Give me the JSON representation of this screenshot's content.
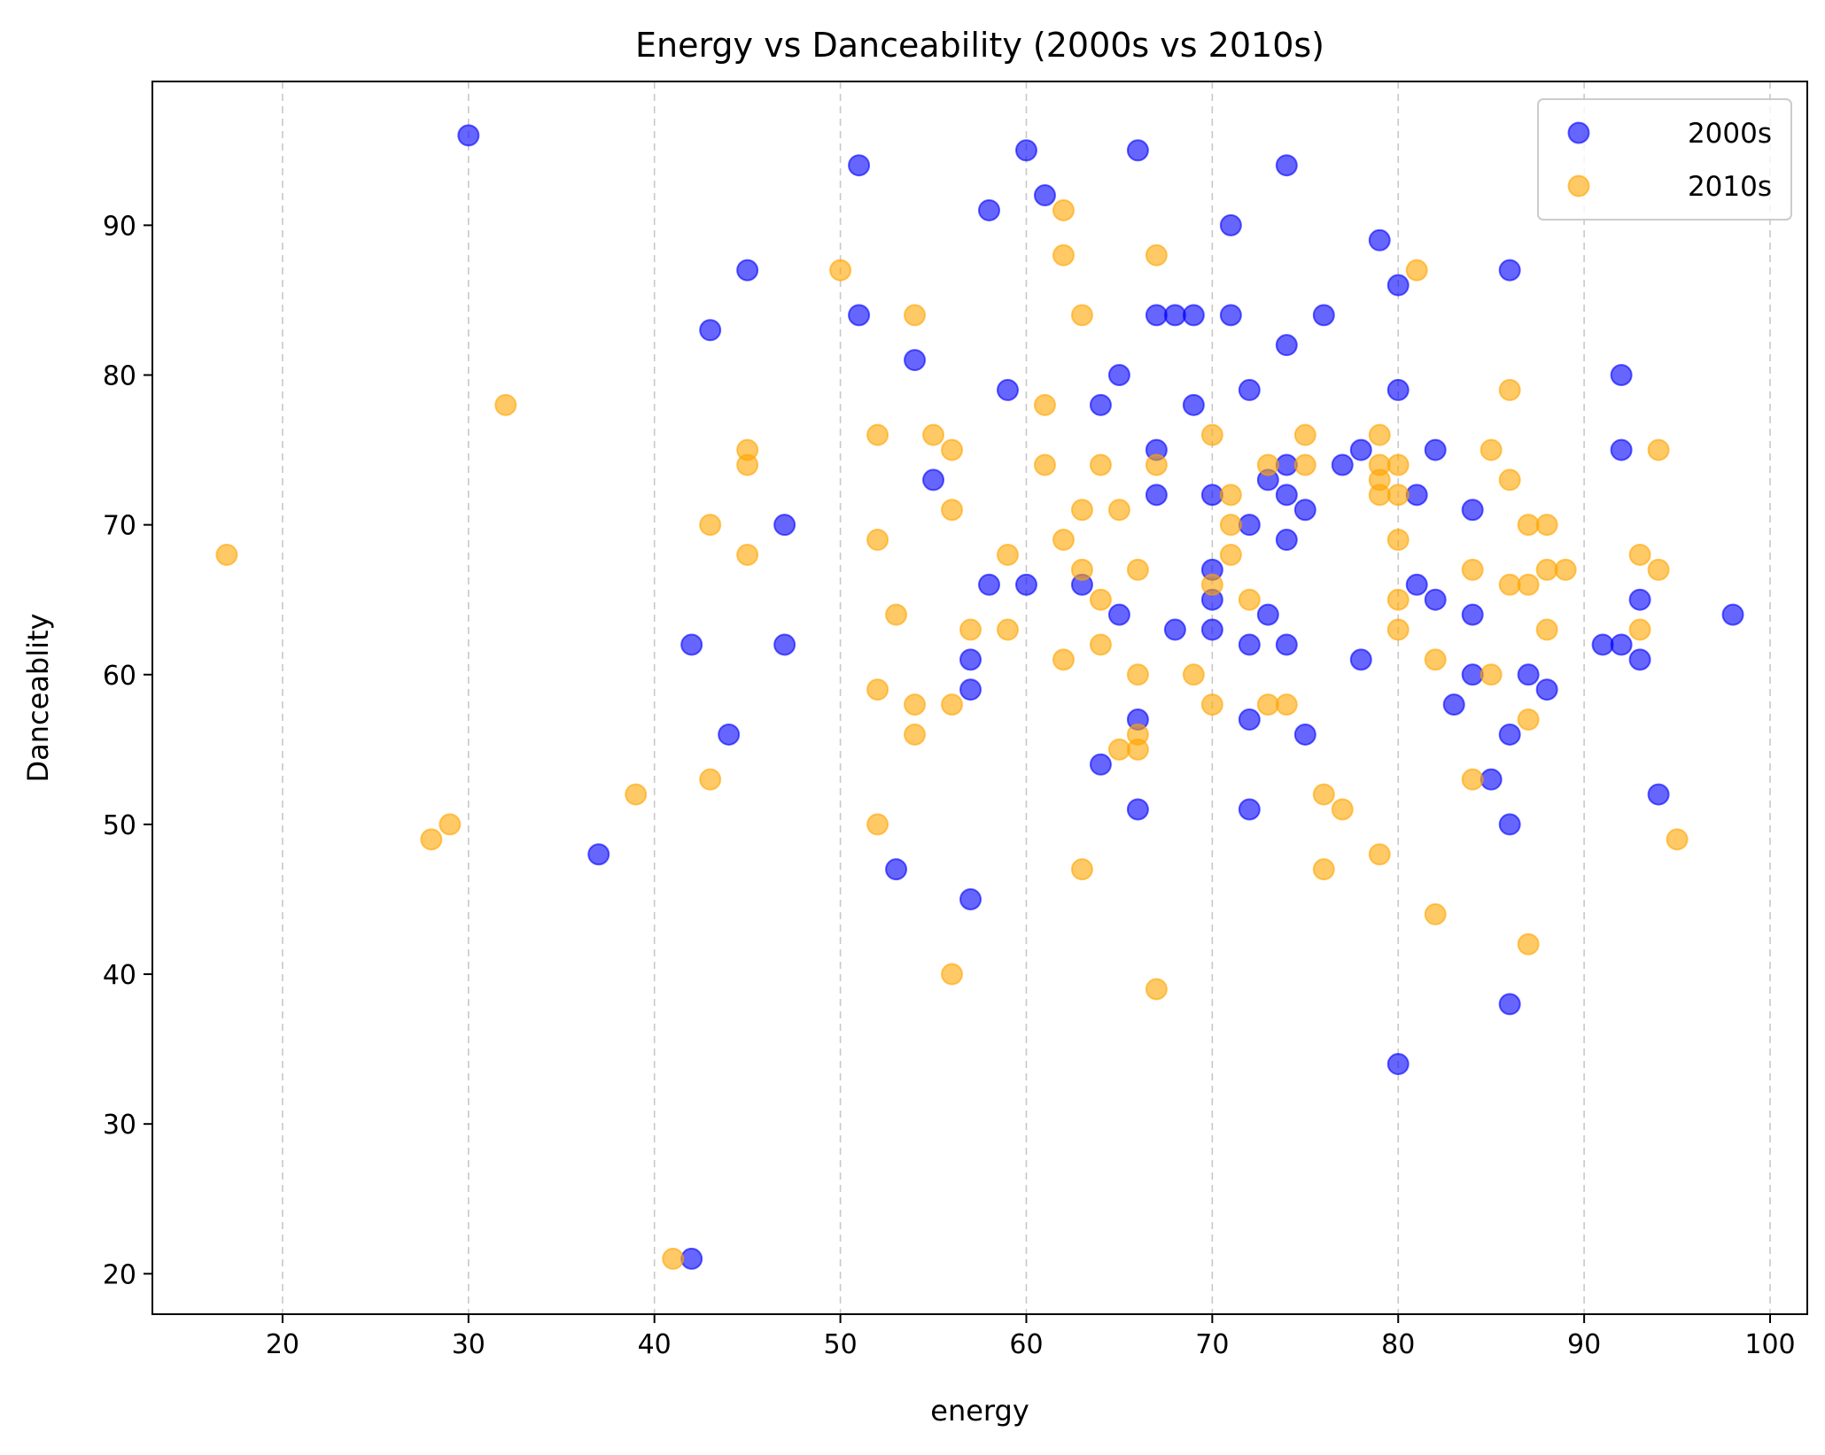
{
  "chart_data": {
    "type": "scatter",
    "title": "Energy vs Danceability (2000s vs 2010s)",
    "xlabel": "energy",
    "ylabel": "Danceablity",
    "xlim": [
      13,
      102
    ],
    "ylim": [
      17.3,
      99.6
    ],
    "xticks": [
      20,
      30,
      40,
      50,
      60,
      70,
      80,
      90,
      100
    ],
    "yticks": [
      20,
      30,
      40,
      50,
      60,
      70,
      80,
      90
    ],
    "grid": "vertical dashed",
    "legend_position": "top-right",
    "series": [
      {
        "name": "2000s",
        "color": "#0000ff",
        "points": [
          [
            30,
            96
          ],
          [
            51,
            94
          ],
          [
            60,
            95
          ],
          [
            66,
            95
          ],
          [
            74,
            94
          ],
          [
            61,
            92
          ],
          [
            58,
            91
          ],
          [
            71,
            90
          ],
          [
            79,
            89
          ],
          [
            45,
            87
          ],
          [
            86,
            87
          ],
          [
            80,
            86
          ],
          [
            51,
            84
          ],
          [
            67,
            84
          ],
          [
            68,
            84
          ],
          [
            69,
            84
          ],
          [
            71,
            84
          ],
          [
            76,
            84
          ],
          [
            43,
            83
          ],
          [
            74,
            82
          ],
          [
            54,
            81
          ],
          [
            65,
            80
          ],
          [
            92,
            80
          ],
          [
            59,
            79
          ],
          [
            72,
            79
          ],
          [
            80,
            79
          ],
          [
            64,
            78
          ],
          [
            69,
            78
          ],
          [
            67,
            75
          ],
          [
            78,
            75
          ],
          [
            82,
            75
          ],
          [
            92,
            75
          ],
          [
            77,
            74
          ],
          [
            74,
            74
          ],
          [
            55,
            73
          ],
          [
            73,
            73
          ],
          [
            67,
            72
          ],
          [
            70,
            72
          ],
          [
            74,
            72
          ],
          [
            81,
            72
          ],
          [
            75,
            71
          ],
          [
            84,
            71
          ],
          [
            47,
            70
          ],
          [
            72,
            70
          ],
          [
            74,
            69
          ],
          [
            70,
            67
          ],
          [
            58,
            66
          ],
          [
            60,
            66
          ],
          [
            63,
            66
          ],
          [
            81,
            66
          ],
          [
            65,
            64
          ],
          [
            73,
            64
          ],
          [
            84,
            64
          ],
          [
            98,
            64
          ],
          [
            70,
            65
          ],
          [
            82,
            65
          ],
          [
            93,
            65
          ],
          [
            68,
            63
          ],
          [
            70,
            63
          ],
          [
            42,
            62
          ],
          [
            47,
            62
          ],
          [
            72,
            62
          ],
          [
            74,
            62
          ],
          [
            91,
            62
          ],
          [
            92,
            62
          ],
          [
            57,
            61
          ],
          [
            78,
            61
          ],
          [
            93,
            61
          ],
          [
            84,
            60
          ],
          [
            87,
            60
          ],
          [
            57,
            59
          ],
          [
            88,
            59
          ],
          [
            83,
            58
          ],
          [
            66,
            57
          ],
          [
            72,
            57
          ],
          [
            44,
            56
          ],
          [
            75,
            56
          ],
          [
            86,
            56
          ],
          [
            64,
            54
          ],
          [
            85,
            53
          ],
          [
            94,
            52
          ],
          [
            66,
            51
          ],
          [
            72,
            51
          ],
          [
            86,
            50
          ],
          [
            37,
            48
          ],
          [
            53,
            47
          ],
          [
            57,
            45
          ],
          [
            86,
            38
          ],
          [
            80,
            34
          ],
          [
            42,
            21
          ]
        ]
      },
      {
        "name": "2010s",
        "color": "#ffa500",
        "points": [
          [
            62,
            91
          ],
          [
            62,
            88
          ],
          [
            67,
            88
          ],
          [
            50,
            87
          ],
          [
            81,
            87
          ],
          [
            54,
            84
          ],
          [
            63,
            84
          ],
          [
            86,
            79
          ],
          [
            32,
            78
          ],
          [
            61,
            78
          ],
          [
            52,
            76
          ],
          [
            55,
            76
          ],
          [
            70,
            76
          ],
          [
            75,
            76
          ],
          [
            79,
            76
          ],
          [
            45,
            75
          ],
          [
            56,
            75
          ],
          [
            85,
            75
          ],
          [
            94,
            75
          ],
          [
            45,
            74
          ],
          [
            61,
            74
          ],
          [
            64,
            74
          ],
          [
            67,
            74
          ],
          [
            73,
            74
          ],
          [
            75,
            74
          ],
          [
            79,
            74
          ],
          [
            80,
            74
          ],
          [
            79,
            73
          ],
          [
            86,
            73
          ],
          [
            71,
            72
          ],
          [
            79,
            72
          ],
          [
            80,
            72
          ],
          [
            56,
            71
          ],
          [
            63,
            71
          ],
          [
            65,
            71
          ],
          [
            43,
            70
          ],
          [
            71,
            70
          ],
          [
            87,
            70
          ],
          [
            88,
            70
          ],
          [
            52,
            69
          ],
          [
            62,
            69
          ],
          [
            80,
            69
          ],
          [
            17,
            68
          ],
          [
            45,
            68
          ],
          [
            59,
            68
          ],
          [
            71,
            68
          ],
          [
            93,
            68
          ],
          [
            63,
            67
          ],
          [
            66,
            67
          ],
          [
            84,
            67
          ],
          [
            88,
            67
          ],
          [
            89,
            67
          ],
          [
            94,
            67
          ],
          [
            70,
            66
          ],
          [
            86,
            66
          ],
          [
            87,
            66
          ],
          [
            64,
            65
          ],
          [
            72,
            65
          ],
          [
            80,
            65
          ],
          [
            53,
            64
          ],
          [
            57,
            63
          ],
          [
            59,
            63
          ],
          [
            80,
            63
          ],
          [
            88,
            63
          ],
          [
            93,
            63
          ],
          [
            62,
            61
          ],
          [
            82,
            61
          ],
          [
            64,
            62
          ],
          [
            66,
            60
          ],
          [
            69,
            60
          ],
          [
            85,
            60
          ],
          [
            52,
            59
          ],
          [
            54,
            58
          ],
          [
            56,
            58
          ],
          [
            70,
            58
          ],
          [
            73,
            58
          ],
          [
            74,
            58
          ],
          [
            87,
            57
          ],
          [
            54,
            56
          ],
          [
            66,
            56
          ],
          [
            65,
            55
          ],
          [
            66,
            55
          ],
          [
            43,
            53
          ],
          [
            84,
            53
          ],
          [
            39,
            52
          ],
          [
            76,
            52
          ],
          [
            77,
            51
          ],
          [
            29,
            50
          ],
          [
            52,
            50
          ],
          [
            28,
            49
          ],
          [
            95,
            49
          ],
          [
            79,
            48
          ],
          [
            63,
            47
          ],
          [
            76,
            47
          ],
          [
            82,
            44
          ],
          [
            87,
            42
          ],
          [
            56,
            40
          ],
          [
            67,
            39
          ],
          [
            41,
            21
          ]
        ]
      }
    ]
  }
}
